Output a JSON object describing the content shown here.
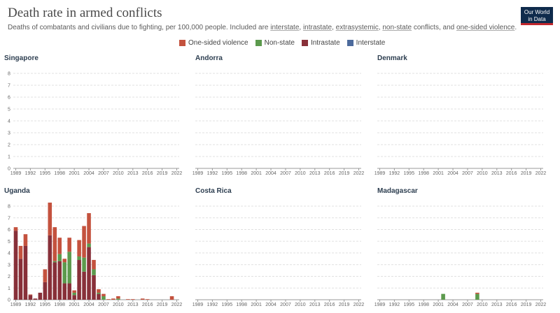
{
  "header": {
    "title": "Death rate in armed conflicts",
    "subtitle_prefix": "Deaths of combatants and civilians due to fighting, per 100,000 people. Included are ",
    "subtitle_links": [
      "interstate",
      "intrastate",
      "extrasystemic",
      "non-state",
      "one-sided violence"
    ],
    "subtitle_sep_1": ", ",
    "subtitle_sep_2": ", ",
    "subtitle_sep_3": ", ",
    "subtitle_and": " conflicts, and ",
    "subtitle_end": ".",
    "logo_line1": "Our World",
    "logo_line2": "in Data"
  },
  "legend": [
    {
      "label": "One-sided violence",
      "color": "#c4523e"
    },
    {
      "label": "Non-state",
      "color": "#5c9a4d"
    },
    {
      "label": "Intrastate",
      "color": "#883039"
    },
    {
      "label": "Interstate",
      "color": "#4c6a9c"
    }
  ],
  "chart_data": [
    {
      "type": "bar",
      "stacked": true,
      "title": "Singapore",
      "ylim": [
        0,
        8
      ],
      "yticks": [
        0,
        1,
        2,
        3,
        4,
        5,
        6,
        7,
        8
      ],
      "show_y_ticks": true,
      "xticks": [
        "1989",
        "1992",
        "1995",
        "1998",
        "2001",
        "2004",
        "2007",
        "2010",
        "2013",
        "2016",
        "2019",
        "2022"
      ],
      "x_range": [
        1989,
        2022
      ],
      "series": []
    },
    {
      "type": "bar",
      "stacked": true,
      "title": "Andorra",
      "ylim": [
        0,
        8
      ],
      "yticks": [
        0,
        1,
        2,
        3,
        4,
        5,
        6,
        7,
        8
      ],
      "show_y_ticks": false,
      "xticks": [
        "1989",
        "1992",
        "1995",
        "1998",
        "2001",
        "2004",
        "2007",
        "2010",
        "2013",
        "2016",
        "2019",
        "2022"
      ],
      "x_range": [
        1989,
        2022
      ],
      "series": []
    },
    {
      "type": "bar",
      "stacked": true,
      "title": "Denmark",
      "ylim": [
        0,
        8
      ],
      "yticks": [
        0,
        1,
        2,
        3,
        4,
        5,
        6,
        7,
        8
      ],
      "show_y_ticks": false,
      "xticks": [
        "1989",
        "1992",
        "1995",
        "1998",
        "2001",
        "2004",
        "2007",
        "2010",
        "2013",
        "2016",
        "2019",
        "2022"
      ],
      "x_range": [
        1989,
        2022
      ],
      "series": []
    },
    {
      "type": "bar",
      "stacked": true,
      "title": "Uganda",
      "ylim": [
        0,
        8
      ],
      "yticks": [
        0,
        1,
        2,
        3,
        4,
        5,
        6,
        7,
        8
      ],
      "show_y_ticks": true,
      "xticks": [
        "1989",
        "1992",
        "1995",
        "1998",
        "2001",
        "2004",
        "2007",
        "2010",
        "2013",
        "2016",
        "2019",
        "2022"
      ],
      "x_range": [
        1989,
        2022
      ],
      "series": [
        {
          "name": "Intrastate",
          "x": [
            1989,
            1990,
            1991,
            1992,
            1993,
            1994,
            1995,
            1996,
            1997,
            1998,
            1999,
            2000,
            2001,
            2002,
            2003,
            2004,
            2005,
            2006
          ],
          "values": [
            5.9,
            3.5,
            4.6,
            0.4,
            0.1,
            0.6,
            1.5,
            5.5,
            3.2,
            3.3,
            1.4,
            1.4,
            0.4,
            3.4,
            2.4,
            4.5,
            2.1,
            0.5
          ]
        },
        {
          "name": "Non-state",
          "x": [
            1997,
            1998,
            1999,
            2000,
            2001,
            2002,
            2003,
            2004,
            2005,
            2006,
            2007,
            2010
          ],
          "values": [
            0.1,
            0.6,
            1.8,
            2.7,
            0.2,
            0.3,
            1.2,
            0.3,
            0.5,
            0.1,
            0.3,
            0.1
          ]
        },
        {
          "name": "One-sided violence",
          "x": [
            1989,
            1990,
            1991,
            1992,
            1995,
            1996,
            1997,
            1998,
            1999,
            2000,
            2001,
            2002,
            2003,
            2004,
            2005,
            2006,
            2007,
            2008,
            2009,
            2010,
            2012,
            2013,
            2015,
            2016,
            2021
          ],
          "values": [
            0.3,
            1.1,
            1.0,
            0.05,
            1.1,
            2.8,
            2.9,
            1.4,
            0.3,
            1.2,
            0.2,
            1.4,
            2.7,
            2.6,
            0.8,
            0.3,
            0.2,
            0.05,
            0.1,
            0.2,
            0.05,
            0.05,
            0.1,
            0.05,
            0.3
          ]
        }
      ]
    },
    {
      "type": "bar",
      "stacked": true,
      "title": "Costa Rica",
      "ylim": [
        0,
        8
      ],
      "yticks": [
        0,
        1,
        2,
        3,
        4,
        5,
        6,
        7,
        8
      ],
      "show_y_ticks": false,
      "xticks": [
        "1989",
        "1992",
        "1995",
        "1998",
        "2001",
        "2004",
        "2007",
        "2010",
        "2013",
        "2016",
        "2019",
        "2022"
      ],
      "x_range": [
        1989,
        2022
      ],
      "series": []
    },
    {
      "type": "bar",
      "stacked": true,
      "title": "Madagascar",
      "ylim": [
        0,
        8
      ],
      "yticks": [
        0,
        1,
        2,
        3,
        4,
        5,
        6,
        7,
        8
      ],
      "show_y_ticks": false,
      "xticks": [
        "1989",
        "1992",
        "1995",
        "1998",
        "2001",
        "2004",
        "2007",
        "2010",
        "2013",
        "2016",
        "2019",
        "2022"
      ],
      "x_range": [
        1989,
        2022
      ],
      "series": [
        {
          "name": "Non-state",
          "x": [
            2002,
            2009
          ],
          "values": [
            0.5,
            0.5
          ]
        },
        {
          "name": "One-sided violence",
          "x": [
            2009
          ],
          "values": [
            0.1
          ]
        }
      ]
    }
  ]
}
